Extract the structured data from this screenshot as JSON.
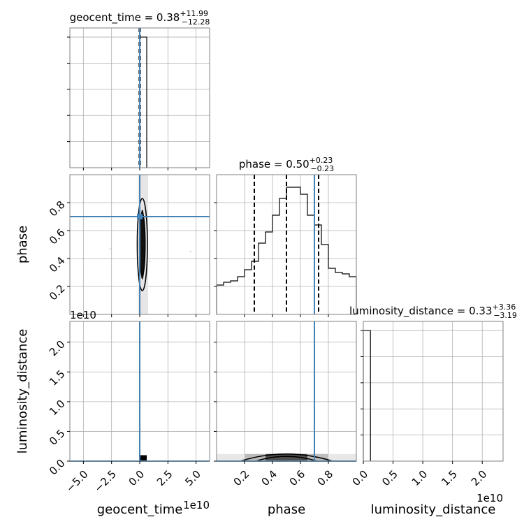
{
  "chart_data": {
    "type": "corner",
    "parameters": [
      {
        "name": "geocent_time",
        "axis_label": "geocent_time",
        "title_prefix": "geocent_time = ",
        "median": "0.38",
        "plus": "+11.99",
        "minus": "−12.28",
        "range": [
          -6.2,
          6.2
        ],
        "offset_text": "1e10",
        "ticks": [
          -5.0,
          -2.5,
          0.0,
          2.5,
          5.0
        ],
        "tick_labels": [
          "−5.0",
          "−2.5",
          "0.0",
          "2.5",
          "5.0"
        ],
        "truth": 0.0
      },
      {
        "name": "phase",
        "axis_label": "phase",
        "title_prefix": "phase = ",
        "median": "0.50",
        "plus": "+0.23",
        "minus": "−0.23",
        "range": [
          0.0,
          1.0
        ],
        "ticks": [
          0.2,
          0.4,
          0.6,
          0.8
        ],
        "tick_labels": [
          "0.2",
          "0.4",
          "0.6",
          "0.8"
        ],
        "truth": 0.7
      },
      {
        "name": "luminosity_distance",
        "axis_label": "luminosity_distance",
        "title_prefix": "luminosity_distance = ",
        "median": "0.33",
        "plus": "+3.36",
        "minus": "−3.19",
        "range": [
          0.0,
          2.35
        ],
        "offset_text": "1e10",
        "ticks": [
          0.0,
          0.5,
          1.0,
          1.5,
          2.0
        ],
        "tick_labels": [
          "0.0",
          "0.5",
          "1.0",
          "1.5",
          "2.0"
        ],
        "truth": 0.0
      }
    ],
    "histograms": {
      "geocent_time": {
        "edges": [
          0.0,
          0.62
        ],
        "counts": [
          1.0
        ],
        "ylim": [
          0,
          1.07
        ],
        "quantiles": [
          0.0,
          0.0,
          0.0
        ]
      },
      "phase": {
        "edges": [
          0.0,
          0.05,
          0.1,
          0.15,
          0.2,
          0.25,
          0.3,
          0.35,
          0.4,
          0.45,
          0.5,
          0.55,
          0.6,
          0.65,
          0.7,
          0.75,
          0.8,
          0.85,
          0.9,
          0.95,
          1.0
        ],
        "counts": [
          0.21,
          0.23,
          0.24,
          0.27,
          0.32,
          0.38,
          0.51,
          0.59,
          0.71,
          0.83,
          0.91,
          0.91,
          0.86,
          0.71,
          0.64,
          0.5,
          0.33,
          0.3,
          0.29,
          0.27
        ],
        "ylim": [
          0,
          1.0
        ],
        "quantiles": [
          0.27,
          0.5,
          0.73
        ]
      },
      "luminosity_distance": {
        "edges": [
          0.0,
          0.12
        ],
        "counts": [
          1.0
        ],
        "ylim": [
          0,
          1.07
        ]
      }
    },
    "panels_2d": {
      "phase_vs_geocent_time": {
        "truth_x": 0.0,
        "truth_y": 0.7,
        "truth_marker": [
          0.0,
          0.7
        ],
        "contours": [
          {
            "cx": 0.23,
            "cy": 0.5,
            "rx": 0.45,
            "ry": 0.33
          },
          {
            "cx": 0.23,
            "cy": 0.5,
            "rx": 0.25,
            "ry": 0.22
          }
        ]
      },
      "luminosity_distance_vs_geocent_time": {
        "truth_x": 0.0,
        "truth_y": 0.0,
        "cells": [
          {
            "x0": 0.0,
            "x1": 0.62,
            "y0": 0.0,
            "y1": 0.1,
            "shade": "#000000"
          }
        ]
      },
      "luminosity_distance_vs_phase": {
        "truth_x": 0.7,
        "truth_y": 0.0,
        "cells": [
          {
            "x0": 0.0,
            "x1": 1.0,
            "y0": 0.0,
            "y1": 0.12,
            "shade": "#e8e8e8"
          },
          {
            "x0": 0.2,
            "x1": 0.8,
            "y0": 0.0,
            "y1": 0.12,
            "shade": "#bdbdbd"
          },
          {
            "x0": 0.35,
            "x1": 0.65,
            "y0": 0.0,
            "y1": 0.12,
            "shade": "#4f4f4f"
          }
        ],
        "contours": [
          {
            "cx": 0.5,
            "cy": 0.0,
            "rx": 0.33,
            "ry": 0.12
          },
          {
            "cx": 0.5,
            "cy": 0.0,
            "rx": 0.22,
            "ry": 0.08
          }
        ]
      }
    },
    "colors": {
      "truth": "#4682b4",
      "line": "#000000",
      "grid": "#b0b0b0",
      "frame": "#808080"
    },
    "grid": true
  }
}
